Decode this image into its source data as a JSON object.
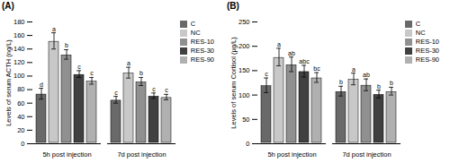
{
  "chart_data": [
    {
      "type": "bar",
      "title": "(A)",
      "ylabel": "Levels of serum ACTH (ng/L)",
      "categories": [
        "5h post injection",
        "7d post injection"
      ],
      "series": [
        {
          "name": "C",
          "color": "#696969",
          "values": [
            74,
            65
          ],
          "errors": [
            8,
            5
          ],
          "annotations": [
            "d",
            "c"
          ]
        },
        {
          "name": "NC",
          "color": "#c8c8c8",
          "values": [
            152,
            105
          ],
          "errors": [
            12,
            8
          ],
          "annotations": [
            "a",
            "a"
          ]
        },
        {
          "name": "RES-10",
          "color": "#909090",
          "values": [
            132,
            92
          ],
          "errors": [
            7,
            6
          ],
          "annotations": [
            "b",
            "b"
          ]
        },
        {
          "name": "RES-30",
          "color": "#404040",
          "values": [
            103,
            71
          ],
          "errors": [
            5,
            4
          ],
          "annotations": [
            "c",
            "c"
          ]
        },
        {
          "name": "RES-90",
          "color": "#b0b0b0",
          "values": [
            93,
            69
          ],
          "errors": [
            5,
            4
          ],
          "annotations": [
            "c",
            "c"
          ]
        }
      ],
      "ylim": [
        0,
        180
      ],
      "yticks": [
        0,
        20,
        40,
        60,
        80,
        100,
        120,
        140,
        160,
        180
      ],
      "grid": false,
      "legend": "right"
    },
    {
      "type": "bar",
      "title": "(B)",
      "ylabel": "Levels of serum Cortisol (μg/L)",
      "categories": [
        "5h post injection",
        "7d post injection"
      ],
      "series": [
        {
          "name": "C",
          "color": "#696969",
          "values": [
            120,
            108
          ],
          "errors": [
            15,
            10
          ],
          "annotations": [
            "c",
            "b"
          ]
        },
        {
          "name": "NC",
          "color": "#c8c8c8",
          "values": [
            178,
            133
          ],
          "errors": [
            18,
            12
          ],
          "annotations": [
            "a",
            "a"
          ]
        },
        {
          "name": "RES-10",
          "color": "#909090",
          "values": [
            163,
            121
          ],
          "errors": [
            15,
            12
          ],
          "annotations": [
            "ab",
            "ab"
          ]
        },
        {
          "name": "RES-30",
          "color": "#404040",
          "values": [
            149,
            102
          ],
          "errors": [
            12,
            8
          ],
          "annotations": [
            "abc",
            "b"
          ]
        },
        {
          "name": "RES-90",
          "color": "#b0b0b0",
          "values": [
            136,
            108
          ],
          "errors": [
            10,
            8
          ],
          "annotations": [
            "bc",
            "b"
          ]
        }
      ],
      "ylim": [
        0,
        250
      ],
      "yticks": [
        0,
        50,
        100,
        150,
        200,
        250
      ],
      "grid": false,
      "legend": "right"
    }
  ]
}
